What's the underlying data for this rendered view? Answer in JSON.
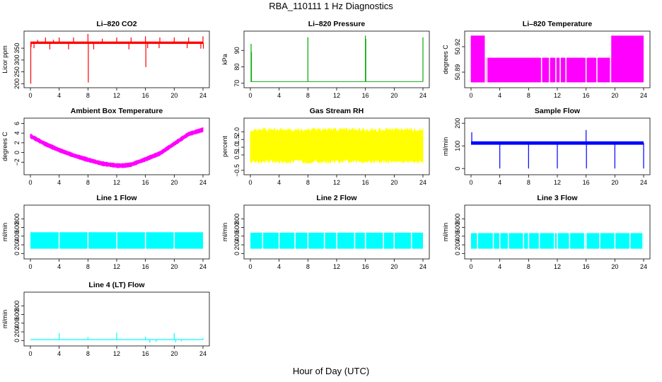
{
  "title": "RBA_110111  1 Hz Diagnostics",
  "xlabel": "Hour of Day (UTC)",
  "chart_data": [
    {
      "type": "line",
      "title": "Li–820 CO2",
      "ylabel": "Licor ppm",
      "color": "#ff0000",
      "xlim": [
        0,
        24
      ],
      "xticks": [
        "0",
        "4",
        "8",
        "12",
        "16",
        "20",
        "24"
      ],
      "ylim": [
        195,
        410
      ],
      "yticks": [
        "200",
        "250",
        "300",
        "350"
      ],
      "series": [
        {
          "band": [
            368,
            378
          ],
          "spikes": [
            [
              0.05,
              200
            ],
            [
              0.1,
              355
            ],
            [
              0.5,
              350
            ],
            [
              1.0,
              385
            ],
            [
              2.1,
              395
            ],
            [
              2.7,
              345
            ],
            [
              3.2,
              385
            ],
            [
              4.0,
              395
            ],
            [
              5.3,
              345
            ],
            [
              6.0,
              395
            ],
            [
              8.0,
              410
            ],
            [
              8.05,
              205
            ],
            [
              8.8,
              345
            ],
            [
              10.0,
              390
            ],
            [
              12.0,
              395
            ],
            [
              13.7,
              345
            ],
            [
              14.0,
              395
            ],
            [
              16.0,
              400
            ],
            [
              16.05,
              270
            ],
            [
              16.3,
              350
            ],
            [
              17.9,
              350
            ],
            [
              18.0,
              395
            ],
            [
              20.0,
              395
            ],
            [
              21.8,
              350
            ],
            [
              22.0,
              395
            ],
            [
              23.7,
              348
            ],
            [
              24.0,
              400
            ],
            [
              24.05,
              348
            ]
          ]
        }
      ]
    },
    {
      "type": "line",
      "title": "Li–820 Pressure",
      "ylabel": "kPa",
      "color": "#00aa00",
      "xlim": [
        0,
        24
      ],
      "xticks": [
        "0",
        "4",
        "8",
        "12",
        "16",
        "20",
        "24"
      ],
      "ylim": [
        69,
        100
      ],
      "yticks": [
        "70",
        "80",
        "90"
      ],
      "series": [
        {
          "band": [
            70.8,
            71.2
          ],
          "spikes": [
            [
              0.1,
              94
            ],
            [
              0.15,
              89
            ],
            [
              8.0,
              98
            ],
            [
              16.0,
              99
            ],
            [
              16.05,
              97
            ],
            [
              24.0,
              98
            ]
          ]
        }
      ]
    },
    {
      "type": "area",
      "title": "Li–820 Temperature",
      "ylabel": "degrees C",
      "color": "#ff00ff",
      "xlim": [
        0,
        24
      ],
      "xticks": [
        "0",
        "4",
        "8",
        "12",
        "16",
        "20",
        "24"
      ],
      "ylim": [
        50.875,
        50.935
      ],
      "yticks": [
        "50.89",
        "50.92"
      ],
      "series": [
        {
          "band_segments": [
            {
              "from": 0,
              "to": 1.9,
              "low": 50.878,
              "high": 50.933
            },
            {
              "from": 1.9,
              "to": 19.5,
              "low": 50.878,
              "high": 50.907
            },
            {
              "from": 19.5,
              "to": 24,
              "low": 50.878,
              "high": 50.933
            }
          ],
          "gaps": [
            2.0,
            2.2,
            9.8,
            10.9,
            11.8,
            12.4,
            13.2,
            16.0,
            17.5,
            19.4
          ]
        }
      ]
    },
    {
      "type": "line",
      "title": "Ambient Box Temperature",
      "ylabel": "degrees C",
      "color": "#ff00ff",
      "xlim": [
        0,
        24
      ],
      "xticks": [
        "0",
        "4",
        "8",
        "12",
        "16",
        "20",
        "24"
      ],
      "ylim": [
        -4,
        6.5
      ],
      "yticks": [
        "−2",
        "0",
        "2",
        "4",
        "6"
      ],
      "series": [
        {
          "x": [
            0,
            2,
            4,
            6,
            8,
            10,
            12,
            13,
            14,
            16,
            18,
            20,
            22,
            24
          ],
          "y": [
            3.4,
            1.8,
            0.5,
            -0.6,
            -1.5,
            -2.3,
            -2.7,
            -2.7,
            -2.5,
            -1.4,
            -0.2,
            1.8,
            3.8,
            4.7
          ],
          "amplitude": 0.9
        }
      ]
    },
    {
      "type": "area",
      "title": "Gas Stream RH",
      "ylabel": "percent",
      "color": "#ffff00",
      "xlim": [
        0,
        24
      ],
      "xticks": [
        "0",
        "4",
        "8",
        "12",
        "16",
        "20",
        "24"
      ],
      "ylim": [
        -0.6,
        2.7
      ],
      "yticks": [
        "−0.5",
        "0.5",
        "1.0",
        "1.5",
        "2.0"
      ],
      "series": [
        {
          "band": [
            0.1,
            2.1
          ],
          "envelope_noise": 0.25
        }
      ]
    },
    {
      "type": "line",
      "title": "Sample Flow",
      "ylabel": "ml/min",
      "color": "#0000ff",
      "xlim": [
        0,
        24
      ],
      "xticks": [
        "0",
        "4",
        "8",
        "12",
        "16",
        "20",
        "24"
      ],
      "ylim": [
        -15,
        210
      ],
      "yticks": [
        "0",
        "100",
        "200"
      ],
      "series": [
        {
          "band": [
            105,
            120
          ],
          "spikes": [
            [
              0.1,
              160
            ],
            [
              4.0,
              0
            ],
            [
              8.0,
              0
            ],
            [
              12.0,
              0
            ],
            [
              16.0,
              170
            ],
            [
              16.05,
              0
            ],
            [
              20.0,
              0
            ],
            [
              24.0,
              0
            ]
          ]
        }
      ]
    },
    {
      "type": "area",
      "title": "Line 1 Flow",
      "ylabel": "ml/min",
      "color": "#00ffff",
      "xlim": [
        0,
        24
      ],
      "xticks": [
        "0",
        "4",
        "8",
        "12",
        "16",
        "20",
        "24"
      ],
      "ylim": [
        -60,
        1050
      ],
      "yticks": [
        "0",
        "200",
        "400",
        "600",
        "800"
      ],
      "series": [
        {
          "band": [
            110,
            490
          ],
          "gaps": [
            4.0,
            8.0,
            12.0,
            16.0,
            20.0
          ]
        }
      ]
    },
    {
      "type": "area",
      "title": "Line 2 Flow",
      "ylabel": "ml/min",
      "color": "#00ffff",
      "xlim": [
        0,
        24
      ],
      "xticks": [
        "0",
        "4",
        "8",
        "12",
        "16",
        "20",
        "24"
      ],
      "ylim": [
        -60,
        1050
      ],
      "yticks": [
        "0",
        "200",
        "400",
        "600",
        "800"
      ],
      "series": [
        {
          "band": [
            110,
            480
          ],
          "gaps": [
            1.7,
            4.0,
            6.2,
            8.0,
            10.3,
            12.0,
            14.5,
            16.0,
            18.5,
            20.0,
            22.4
          ]
        }
      ]
    },
    {
      "type": "area",
      "title": "Line 3 Flow",
      "ylabel": "ml/min",
      "color": "#00ffff",
      "xlim": [
        0,
        24
      ],
      "xticks": [
        "0",
        "4",
        "8",
        "12",
        "16",
        "20",
        "24"
      ],
      "ylim": [
        -60,
        1050
      ],
      "yticks": [
        "0",
        "200",
        "400",
        "600",
        "800"
      ],
      "series": [
        {
          "band": [
            110,
            470
          ],
          "gaps": [
            0.9,
            3.1,
            4.0,
            5.2,
            7.3,
            8.0,
            9.5,
            11.6,
            12.0,
            13.7,
            15.8,
            16.0,
            17.9,
            20.0,
            22.1,
            23.9
          ]
        }
      ]
    },
    {
      "type": "line",
      "title": "Line 4 (LT) Flow",
      "ylabel": "ml/min",
      "color": "#00ffff",
      "xlim": [
        0,
        24
      ],
      "xticks": [
        "0",
        "4",
        "8",
        "12",
        "16",
        "20",
        "24"
      ],
      "ylim": [
        -60,
        1050
      ],
      "yticks": [
        "0",
        "200",
        "400",
        "600",
        "800"
      ],
      "series": [
        {
          "band": [
            10,
            30
          ],
          "spikes": [
            [
              4.0,
              170
            ],
            [
              8.0,
              80
            ],
            [
              12.0,
              180
            ],
            [
              16.0,
              90
            ],
            [
              16.6,
              -50
            ],
            [
              17.5,
              -30
            ],
            [
              20.0,
              170
            ],
            [
              20.2,
              -40
            ],
            [
              21.0,
              -20
            ],
            [
              24.0,
              60
            ]
          ]
        }
      ]
    }
  ]
}
